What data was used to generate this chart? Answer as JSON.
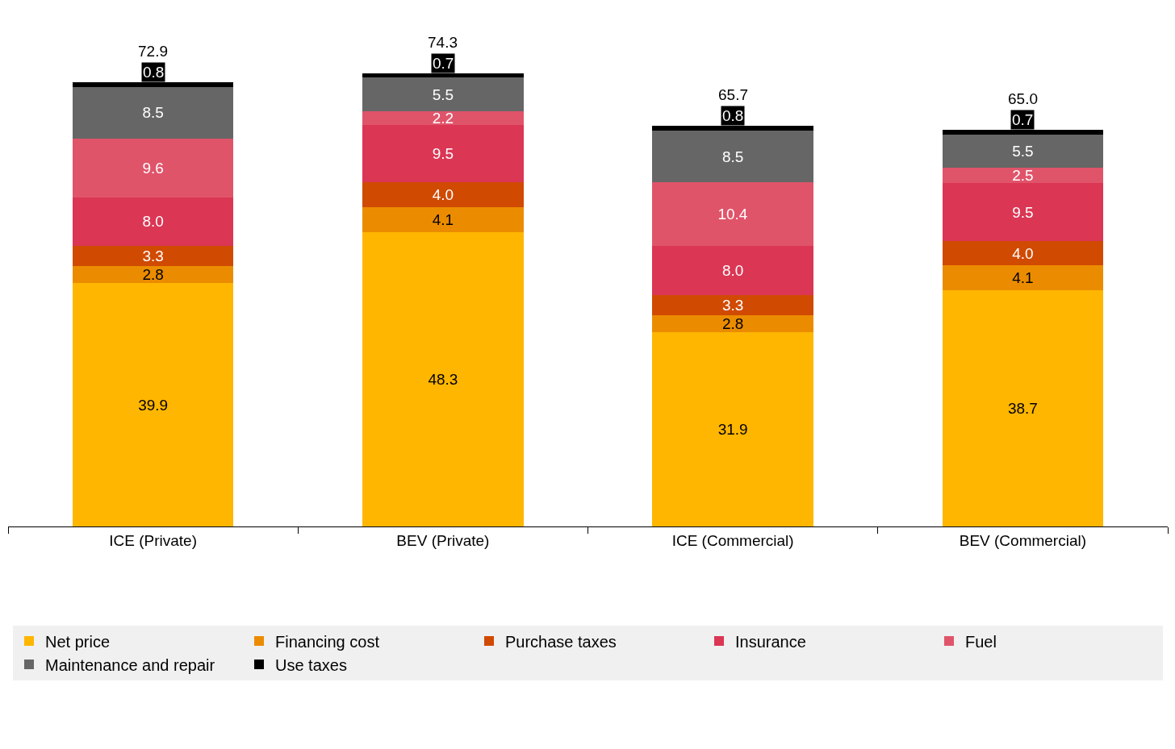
{
  "chart_data": {
    "type": "bar",
    "stacked": true,
    "legend": "bottom",
    "categories": [
      "ICE (Private)",
      "BEV (Private)",
      "ICE (Commercial)",
      "BEV (Commercial)"
    ],
    "series": [
      {
        "name": "Net price",
        "color": "#ffb600",
        "values": [
          39.9,
          48.3,
          31.9,
          38.7
        ],
        "value_labels": [
          "39.9",
          "48.3",
          "31.9",
          "38.7"
        ]
      },
      {
        "name": "Financing cost",
        "color": "#eb8c00",
        "values": [
          2.8,
          4.1,
          2.8,
          4.1
        ],
        "value_labels": [
          "2.8",
          "4.1",
          "2.8",
          "4.1"
        ]
      },
      {
        "name": "Purchase taxes",
        "color": "#d04a02",
        "values": [
          3.3,
          4.0,
          3.3,
          4.0
        ],
        "value_labels": [
          "3.3",
          "4.0",
          "3.3",
          "4.0"
        ]
      },
      {
        "name": "Insurance",
        "color": "#db3654",
        "values": [
          8.0,
          9.5,
          8.0,
          9.5
        ],
        "value_labels": [
          "8.0",
          "9.5",
          "8.0",
          "9.5"
        ]
      },
      {
        "name": "Fuel",
        "color": "#e0546a",
        "values": [
          9.6,
          2.2,
          10.4,
          2.5
        ],
        "value_labels": [
          "9.6",
          "2.2",
          "10.4",
          "2.5"
        ]
      },
      {
        "name": "Maintenance and repair",
        "color": "#666666",
        "values": [
          8.5,
          5.5,
          8.5,
          5.5
        ],
        "value_labels": [
          "8.5",
          "5.5",
          "8.5",
          "5.5"
        ]
      },
      {
        "name": "Use taxes",
        "color": "#000000",
        "values": [
          0.8,
          0.7,
          0.8,
          0.7
        ],
        "value_labels": [
          "0.8",
          "0.7",
          "0.8",
          "0.7"
        ]
      }
    ],
    "totals": [
      "72.9",
      "74.3",
      "65.7",
      "65.0"
    ]
  }
}
